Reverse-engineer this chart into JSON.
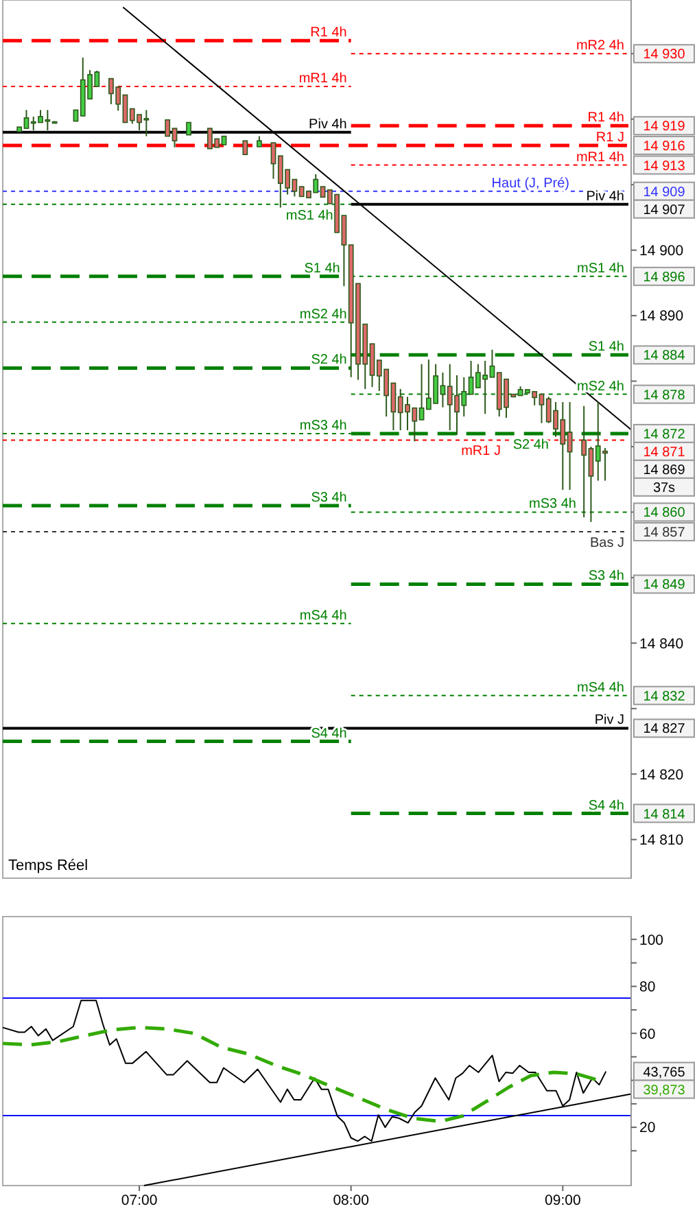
{
  "chart_data": [
    {
      "type": "candlestick",
      "color": "#2d5a1b",
      "xlim": [
        6.355,
        9.323
      ],
      "ylim": [
        14804.1,
        14938.2
      ],
      "tick_labels": "y",
      "yticks": [
        {
          "value": 14930,
          "label": null
        },
        {
          "value": 14920,
          "label": null
        },
        {
          "value": 14910,
          "label": null
        },
        {
          "value": 14900,
          "label": "14 900"
        },
        {
          "value": 14890,
          "label": "14 890"
        },
        {
          "value": 14880,
          "label": null
        },
        {
          "value": 14870,
          "label": null
        },
        {
          "value": 14860,
          "label": null
        },
        {
          "value": 14850,
          "label": null
        },
        {
          "value": 14840,
          "label": "14 840"
        },
        {
          "value": 14830,
          "label": null
        },
        {
          "value": 14820,
          "label": "14 820"
        },
        {
          "value": 14810,
          "label": "14 810"
        }
      ],
      "x": [
        6.4333,
        6.4667,
        6.5,
        6.5333,
        6.5667,
        6.6,
        6.7,
        6.7333,
        6.7667,
        6.8,
        6.8667,
        6.9,
        6.9333,
        6.9667,
        7.0,
        7.0333,
        7.1333,
        7.1667,
        7.2333,
        7.3333,
        7.3667,
        7.4,
        7.5,
        7.5667,
        7.6333,
        7.6667,
        7.7,
        7.7333,
        7.7667,
        7.8,
        7.8333,
        7.8667,
        7.9,
        7.9333,
        7.9667,
        8.0,
        8.0333,
        8.0667,
        8.1,
        8.1333,
        8.1667,
        8.2,
        8.2333,
        8.2667,
        8.3,
        8.3333,
        8.3667,
        8.4,
        8.4333,
        8.4667,
        8.5,
        8.5333,
        8.5667,
        8.6,
        8.6333,
        8.6667,
        8.7,
        8.7333,
        8.7667,
        8.8,
        8.8333,
        8.8667,
        8.9,
        8.9333,
        8.9667,
        9.0,
        9.0333,
        9.1,
        9.1333,
        9.1667,
        9.2
      ],
      "ohlc": [
        [
          14918.1,
          14918.8,
          14918.1,
          14918.8
        ],
        [
          14918.6,
          14921.4,
          14918.6,
          14920.2
        ],
        [
          14919.5,
          14920.4,
          14918.3,
          14919.6
        ],
        [
          14919.5,
          14921.4,
          14919.5,
          14920.4
        ],
        [
          14919.7,
          14921.4,
          14918.3,
          14919.9
        ],
        [
          14919.6,
          14919.7,
          14919.5,
          14919.6
        ],
        [
          14919.7,
          14921.4,
          14919.7,
          14921.4
        ],
        [
          14920.5,
          14929.4,
          14920.5,
          14926.0
        ],
        [
          14923.1,
          14927.5,
          14923.1,
          14926.8
        ],
        [
          14925.0,
          14927.4,
          14925.0,
          14927.2
        ],
        [
          14926.2,
          14926.2,
          14922.3,
          14923.9
        ],
        [
          14924.9,
          14924.9,
          14921.3,
          14922.3
        ],
        [
          14923.7,
          14923.7,
          14919.5,
          14919.5
        ],
        [
          14921.6,
          14921.6,
          14919.3,
          14919.8
        ],
        [
          14920.7,
          14920.7,
          14918.3,
          14919.5
        ],
        [
          14920.0,
          14921.4,
          14917.4,
          14920.1
        ],
        [
          14919.9,
          14919.9,
          14917.4,
          14917.4
        ],
        [
          14918.6,
          14918.6,
          14915.7,
          14916.7
        ],
        [
          14917.6,
          14919.5,
          14917.6,
          14919.5
        ],
        [
          14918.6,
          14918.6,
          14915.5,
          14915.5
        ],
        [
          14917.0,
          14917.0,
          14915.7,
          14915.7
        ],
        [
          14916.1,
          14917.4,
          14916.1,
          14917.4
        ],
        [
          14916.7,
          14916.7,
          14914.6,
          14914.6
        ],
        [
          14915.8,
          14917.4,
          14915.8,
          14916.7
        ],
        [
          14916.4,
          14916.4,
          14910.9,
          14913.2
        ],
        [
          14914.4,
          14914.4,
          14906.5,
          14910.2
        ],
        [
          14912.3,
          14912.3,
          14908.5,
          14909.5
        ],
        [
          14910.8,
          14910.8,
          14908.2,
          14909.0
        ],
        [
          14909.7,
          14909.7,
          14908.2,
          14908.2
        ],
        [
          14909.0,
          14909.0,
          14908.0,
          14908.0
        ],
        [
          14908.8,
          14911.6,
          14908.8,
          14910.8
        ],
        [
          14909.7,
          14909.7,
          14908.1,
          14908.1
        ],
        [
          14909.2,
          14909.2,
          14907.1,
          14907.1
        ],
        [
          14908.5,
          14908.5,
          14902.7,
          14902.7
        ],
        [
          14905.3,
          14905.3,
          14894.5,
          14900.8
        ],
        [
          14900.8,
          14900.8,
          14880.6,
          14888.9
        ],
        [
          14894.9,
          14894.9,
          14880.2,
          14882.6
        ],
        [
          14888.7,
          14888.7,
          14878.8,
          14882.6
        ],
        [
          14885.7,
          14885.7,
          14879.1,
          14880.9
        ],
        [
          14883.2,
          14883.2,
          14878.5,
          14880.8
        ],
        [
          14881.8,
          14881.8,
          14874.6,
          14877.8
        ],
        [
          14879.7,
          14879.7,
          14872.5,
          14875.3
        ],
        [
          14877.6,
          14878.8,
          14872.5,
          14875.2
        ],
        [
          14876.4,
          14877.6,
          14872.5,
          14875.3
        ],
        [
          14875.9,
          14875.9,
          14870.8,
          14873.9
        ],
        [
          14874.1,
          14882.6,
          14874.1,
          14875.9
        ],
        [
          14875.7,
          14883.3,
          14875.7,
          14877.4
        ],
        [
          14876.6,
          14882.6,
          14876.6,
          14880.8
        ],
        [
          14878.0,
          14881.3,
          14876.0,
          14879.3
        ],
        [
          14879.2,
          14882.6,
          14872.5,
          14876.4
        ],
        [
          14877.8,
          14880.9,
          14871.8,
          14875.3
        ],
        [
          14876.3,
          14880.6,
          14874.6,
          14878.4
        ],
        [
          14878.0,
          14883.1,
          14878.0,
          14880.6
        ],
        [
          14879.0,
          14882.6,
          14879.0,
          14881.3
        ],
        [
          14880.3,
          14883.1,
          14875.0,
          14880.9
        ],
        [
          14880.6,
          14884.8,
          14880.6,
          14882.3
        ],
        [
          14881.3,
          14881.3,
          14874.6,
          14875.7
        ],
        [
          14880.3,
          14880.3,
          14874.4,
          14876.0
        ],
        [
          14878.0,
          14878.0,
          14877.6,
          14877.6
        ],
        [
          14877.8,
          14879.2,
          14877.8,
          14878.7
        ],
        [
          14878.2,
          14878.7,
          14878.2,
          14878.7
        ],
        [
          14878.4,
          14878.4,
          14876.3,
          14877.5
        ],
        [
          14878.0,
          14878.0,
          14873.6,
          14876.4
        ],
        [
          14877.3,
          14877.6,
          14873.6,
          14873.8
        ],
        [
          14875.5,
          14876.8,
          14871.5,
          14872.7
        ],
        [
          14874.1,
          14876.8,
          14863.4,
          14870.4
        ],
        [
          14872.2,
          14876.8,
          14863.4,
          14869.2
        ],
        [
          14871.0,
          14876.2,
          14859.2,
          14868.7
        ],
        [
          14869.7,
          14870.0,
          14858.5,
          14865.5
        ],
        [
          14867.8,
          14876.8,
          14864.8,
          14870.1
        ],
        [
          14869.3,
          14869.8,
          14864.8,
          14869.0
        ]
      ],
      "series": [
        {
          "type": "line",
          "name": "R1 4h",
          "color": "#ff0000",
          "line_style": "dashed",
          "x": [
            6.355,
            8.0
          ],
          "values": [
            14932,
            14932
          ]
        },
        {
          "type": "line",
          "name": "mR1 4h",
          "color": "#ff0000",
          "line_style": "dotted",
          "x": [
            6.355,
            8.0
          ],
          "values": [
            14925,
            14925
          ]
        },
        {
          "type": "line",
          "name": "Piv 4h",
          "color": "#000000",
          "line_style": "solid",
          "x": [
            6.355,
            8.0
          ],
          "values": [
            14918,
            14918
          ]
        },
        {
          "type": "line",
          "name": "mS1 4h",
          "color": "#008000",
          "line_style": "dotted",
          "x": [
            6.355,
            8.0
          ],
          "values": [
            14907,
            14907
          ]
        },
        {
          "type": "line",
          "name": "S1 4h",
          "color": "#008000",
          "line_style": "dashed",
          "x": [
            6.355,
            8.0
          ],
          "values": [
            14896,
            14896
          ]
        },
        {
          "type": "line",
          "name": "mS2 4h",
          "color": "#008000",
          "line_style": "dotted",
          "x": [
            6.355,
            8.0
          ],
          "values": [
            14889,
            14889
          ]
        },
        {
          "type": "line",
          "name": "S2 4h",
          "color": "#008000",
          "line_style": "dashed",
          "x": [
            6.355,
            8.0
          ],
          "values": [
            14882,
            14882
          ]
        },
        {
          "type": "line",
          "name": "mS3 4h",
          "color": "#008000",
          "line_style": "dotted",
          "x": [
            6.355,
            8.0
          ],
          "values": [
            14872,
            14872
          ]
        },
        {
          "type": "line",
          "name": "S3 4h",
          "color": "#008000",
          "line_style": "dashed",
          "x": [
            6.355,
            8.0
          ],
          "values": [
            14861,
            14861
          ]
        },
        {
          "type": "line",
          "name": "mS4 4h",
          "color": "#008000",
          "line_style": "dotted",
          "x": [
            6.355,
            8.0
          ],
          "values": [
            14843,
            14843
          ]
        },
        {
          "type": "line",
          "name": "S4 4h",
          "color": "#008000",
          "line_style": "dashed",
          "x": [
            6.355,
            8.0
          ],
          "values": [
            14825,
            14825
          ]
        },
        {
          "type": "line",
          "name": "mR2 4h",
          "color": "#ff0000",
          "line_style": "dotted",
          "x": [
            8.0,
            9.31
          ],
          "values": [
            14930,
            14930
          ],
          "value_labels": [
            null,
            "14 930"
          ]
        },
        {
          "type": "line",
          "name": "R1 4h",
          "color": "#ff0000",
          "line_style": "dashed",
          "x": [
            8.0,
            9.31
          ],
          "values": [
            14919,
            14919
          ],
          "value_labels": [
            null,
            "14 919"
          ]
        },
        {
          "type": "line",
          "name": "mR1 4h",
          "color": "#ff0000",
          "line_style": "dotted",
          "x": [
            8.0,
            9.31
          ],
          "values": [
            14913,
            14913
          ],
          "value_labels": [
            null,
            "14 913"
          ]
        },
        {
          "type": "line",
          "name": "Piv 4h",
          "color": "#000000",
          "line_style": "solid",
          "x": [
            8.0,
            9.31
          ],
          "values": [
            14907,
            14907
          ],
          "value_labels": [
            null,
            "14 907"
          ]
        },
        {
          "type": "line",
          "name": "mS1 4h",
          "color": "#008000",
          "line_style": "dotted",
          "x": [
            8.0,
            9.31
          ],
          "values": [
            14896,
            14896
          ],
          "value_labels": [
            null,
            "14 896"
          ]
        },
        {
          "type": "line",
          "name": "S1 4h",
          "color": "#008000",
          "line_style": "dashed",
          "x": [
            8.0,
            9.31
          ],
          "values": [
            14884,
            14884
          ],
          "value_labels": [
            null,
            "14 884"
          ]
        },
        {
          "type": "line",
          "name": "mS2 4h",
          "color": "#008000",
          "line_style": "dotted",
          "x": [
            8.0,
            9.31
          ],
          "values": [
            14878,
            14878
          ],
          "value_labels": [
            null,
            "14 878"
          ]
        },
        {
          "type": "line",
          "name": "S2 4h",
          "color": "#008000",
          "line_style": "dashed",
          "x": [
            8.0,
            9.31
          ],
          "values": [
            14872,
            14872
          ],
          "value_labels": [
            null,
            "14 872"
          ]
        },
        {
          "type": "line",
          "name": "mS3 4h",
          "color": "#008000",
          "line_style": "dotted",
          "x": [
            8.0,
            9.31
          ],
          "values": [
            14860,
            14860
          ],
          "value_labels": [
            null,
            "14 860"
          ]
        },
        {
          "type": "line",
          "name": "S3 4h",
          "color": "#008000",
          "line_style": "dashed",
          "x": [
            8.0,
            9.31
          ],
          "values": [
            14849,
            14849
          ],
          "value_labels": [
            null,
            "14 849"
          ]
        },
        {
          "type": "line",
          "name": "mS4 4h",
          "color": "#008000",
          "line_style": "dotted",
          "x": [
            8.0,
            9.31
          ],
          "values": [
            14832,
            14832
          ],
          "value_labels": [
            null,
            "14 832"
          ]
        },
        {
          "type": "line",
          "name": "S4 4h",
          "color": "#008000",
          "line_style": "dashed",
          "x": [
            8.0,
            9.31
          ],
          "values": [
            14814,
            14814
          ],
          "value_labels": [
            null,
            "14 814"
          ]
        },
        {
          "type": "line",
          "name": "R1 J",
          "color": "#ff0000",
          "line_style": "dashed",
          "x": [
            6.355,
            9.31
          ],
          "values": [
            14916,
            14916
          ],
          "value_labels": [
            null,
            "14 916"
          ]
        },
        {
          "type": "line",
          "name": "Haut (J, Pré)",
          "color": "#3333ff",
          "line_style": "dotted",
          "x": [
            6.355,
            9.31
          ],
          "values": [
            14909,
            14909
          ],
          "value_labels": [
            null,
            "14 909"
          ]
        },
        {
          "type": "line",
          "name": "mR1 J",
          "color": "#ff0000",
          "line_style": "dotted",
          "x": [
            6.355,
            9.31
          ],
          "values": [
            14871,
            14871
          ],
          "value_labels": [
            null,
            "14 871"
          ]
        },
        {
          "type": "line",
          "name": "Bas J",
          "color": "#333333",
          "line_style": "dotted",
          "x": [
            6.355,
            9.31
          ],
          "values": [
            14857,
            14857
          ],
          "value_labels": [
            null,
            "14 857"
          ]
        },
        {
          "type": "line",
          "name": "Piv J",
          "color": "#000000",
          "line_style": "solid",
          "x": [
            6.355,
            9.31
          ],
          "values": [
            14827,
            14827
          ],
          "value_labels": [
            null,
            "14 827"
          ]
        },
        {
          "type": "line",
          "color": "#000000",
          "line_style": "solid",
          "x": [
            6.923,
            9.323
          ],
          "values": [
            14937.1,
            14872.6
          ]
        }
      ],
      "annotations": [
        "Temps Réel",
        "14 869",
        "37s"
      ]
    },
    {
      "type": "line",
      "xlim": [
        6.355,
        9.323
      ],
      "ylim": [
        -4.8,
        109.7
      ],
      "xticks": [
        {
          "value": 7,
          "label": "07:00"
        },
        {
          "value": 8,
          "label": "08:00"
        },
        {
          "value": 9,
          "label": "09:00"
        }
      ],
      "yticks": [
        100,
        {
          "value": 90,
          "label": null
        },
        80,
        {
          "value": 70,
          "label": null
        },
        60,
        {
          "value": 50,
          "label": null
        },
        {
          "value": 40,
          "label": null
        },
        {
          "value": 30,
          "label": null
        },
        20,
        {
          "value": 10,
          "label": null
        }
      ],
      "annotations": [
        "43,765",
        "39,873"
      ],
      "ref_lines": [
        {
          "axis": "y",
          "value": 75,
          "color": "#0000ff"
        },
        {
          "axis": "y",
          "value": 25,
          "color": "#0000ff"
        }
      ],
      "series": [
        {
          "color": "#000000",
          "line_style": "solid",
          "x": [
            6.355,
            6.43,
            6.458,
            6.49,
            6.523,
            6.559,
            6.591,
            6.688,
            6.725,
            6.796,
            6.828,
            6.86,
            6.892,
            6.935,
            6.968,
            7.032,
            7.129,
            7.161,
            7.226,
            7.333,
            7.366,
            7.398,
            7.495,
            7.559,
            7.667,
            7.699,
            7.731,
            7.763,
            7.828,
            7.86,
            7.892,
            7.935,
            7.968,
            8.0,
            8.032,
            8.065,
            8.097,
            8.129,
            8.161,
            8.194,
            8.226,
            8.269,
            8.301,
            8.333,
            8.398,
            8.462,
            8.495,
            8.527,
            8.559,
            8.602,
            8.667,
            8.699,
            8.731,
            8.763,
            8.796,
            8.839,
            8.871,
            8.925,
            8.968,
            9.0,
            9.032,
            9.065,
            9.097,
            9.14,
            9.172,
            9.204
          ],
          "values": [
            62.5,
            60.5,
            60.5,
            62.9,
            59.0,
            61.9,
            57.0,
            62.9,
            74.0,
            74.0,
            63.9,
            55.1,
            57.6,
            47.3,
            47.3,
            52.2,
            42.4,
            42.4,
            48.3,
            39.1,
            39.1,
            45.3,
            39.1,
            44.7,
            30.7,
            36.2,
            31.7,
            31.7,
            41.0,
            36.2,
            36.2,
            24.8,
            21.9,
            15.5,
            14.1,
            16.1,
            14.1,
            25.2,
            20.0,
            24.5,
            23.9,
            21.9,
            26.4,
            29.1,
            41.0,
            31.7,
            41.0,
            43.0,
            46.3,
            43.4,
            50.6,
            39.5,
            43.4,
            43.0,
            46.3,
            43.4,
            43.4,
            35.6,
            35.6,
            29.1,
            31.7,
            43.4,
            34.6,
            41.0,
            38.1,
            43.8
          ]
        },
        {
          "color": "#33aa00",
          "line_style": "dashed",
          "x": [
            6.355,
            6.484,
            6.613,
            6.742,
            6.871,
            7.0,
            7.129,
            7.258,
            7.387,
            7.516,
            7.645,
            7.774,
            7.903,
            8.032,
            8.161,
            8.29,
            8.419,
            8.527,
            8.634,
            8.742,
            8.849,
            8.957,
            9.065,
            9.172
          ],
          "values": [
            55.7,
            55.1,
            56.4,
            59.0,
            61.5,
            62.5,
            61.9,
            60.0,
            54.1,
            51.2,
            46.3,
            42.4,
            37.5,
            32.7,
            27.8,
            23.9,
            22.5,
            24.8,
            30.7,
            36.9,
            42.0,
            43.4,
            42.8,
            39.9
          ]
        },
        {
          "color": "#000000",
          "line_style": "solid",
          "x": [
            7.022,
            9.323
          ],
          "values": [
            -4.8,
            34.2
          ]
        }
      ]
    }
  ]
}
